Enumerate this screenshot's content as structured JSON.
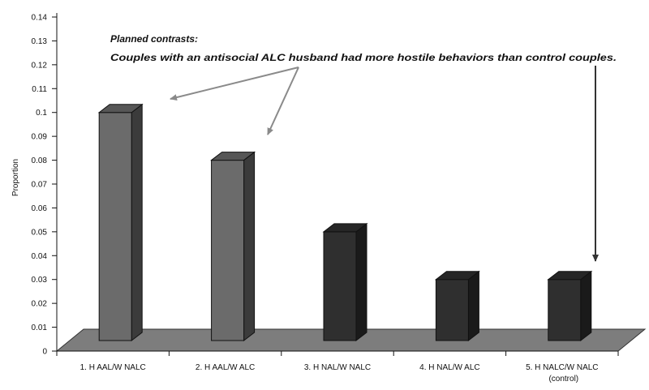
{
  "chart_data": {
    "type": "bar",
    "ylabel": "Proportion",
    "ylim": [
      0,
      0.14
    ],
    "yticks": [
      "0",
      "0.01",
      "0.02",
      "0.03",
      "0.04",
      "0.05",
      "0.06",
      "0.07",
      "0.08",
      "0.09",
      "0.1",
      "0.11",
      "0.12",
      "0.13",
      "0.14"
    ],
    "categories": [
      "1. H AAL/W NALC",
      "2. H AAL/W ALC",
      "3. H NAL/W NALC",
      "4. H NAL/W ALC",
      "5. H NALC/W NALC"
    ],
    "category_sublabels": [
      "",
      "",
      "",
      "",
      "(control)"
    ],
    "values": [
      0.1,
      0.08,
      0.05,
      0.03,
      0.03
    ],
    "bar_colors": [
      "#6b6b6b",
      "#6b6b6b",
      "#2f2f2f",
      "#2f2f2f",
      "#2f2f2f"
    ],
    "grid": false,
    "annotation": {
      "line1": "Planned contrasts:",
      "line2": "Couples with an antisocial ALC husband had more hostile behaviors than control couples."
    }
  }
}
